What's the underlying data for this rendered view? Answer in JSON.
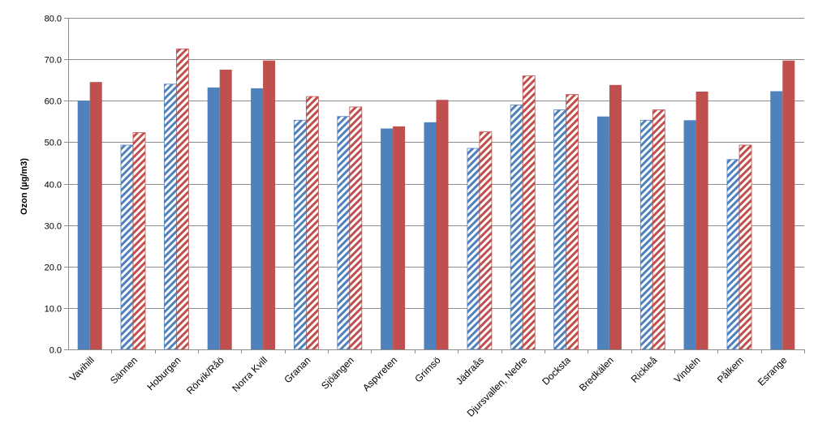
{
  "chart_data": {
    "type": "bar",
    "title": "",
    "xlabel": "",
    "ylabel": "Ozon (µg/m3)",
    "ylim": [
      0,
      80
    ],
    "ytick_step": 10,
    "ytick_labels": [
      "0.0",
      "10.0",
      "20.0",
      "30.0",
      "40.0",
      "50.0",
      "60.0",
      "70.0",
      "80.0"
    ],
    "grid": true,
    "legend": "none",
    "categories": [
      "Vavihill",
      "Sännen",
      "Hoburgen",
      "Rörvik/Råö",
      "Norra Kvill",
      "Granan",
      "Sjöängen",
      "Aspvreten",
      "Grimsö",
      "Jädraås",
      "Djursvallen, Nedre",
      "Docksta",
      "Bredkälen",
      "Rickleå",
      "Vindeln",
      "Pålkem",
      "Esrange"
    ],
    "hatched": [
      false,
      true,
      true,
      false,
      false,
      true,
      true,
      false,
      false,
      true,
      true,
      true,
      false,
      true,
      false,
      true,
      false
    ],
    "series": [
      {
        "name": "series-blue",
        "color": "#4F81BD",
        "values": [
          60.0,
          49.3,
          64.0,
          63.2,
          63.0,
          55.3,
          56.2,
          53.3,
          54.8,
          48.5,
          59.0,
          57.8,
          56.2,
          55.3,
          55.3,
          45.8,
          62.3
        ]
      },
      {
        "name": "series-red",
        "color": "#C0504D",
        "values": [
          64.5,
          52.3,
          72.5,
          67.5,
          69.7,
          61.0,
          58.5,
          53.8,
          60.2,
          52.5,
          66.0,
          61.5,
          63.8,
          57.8,
          62.2,
          49.3,
          69.7
        ]
      }
    ]
  }
}
